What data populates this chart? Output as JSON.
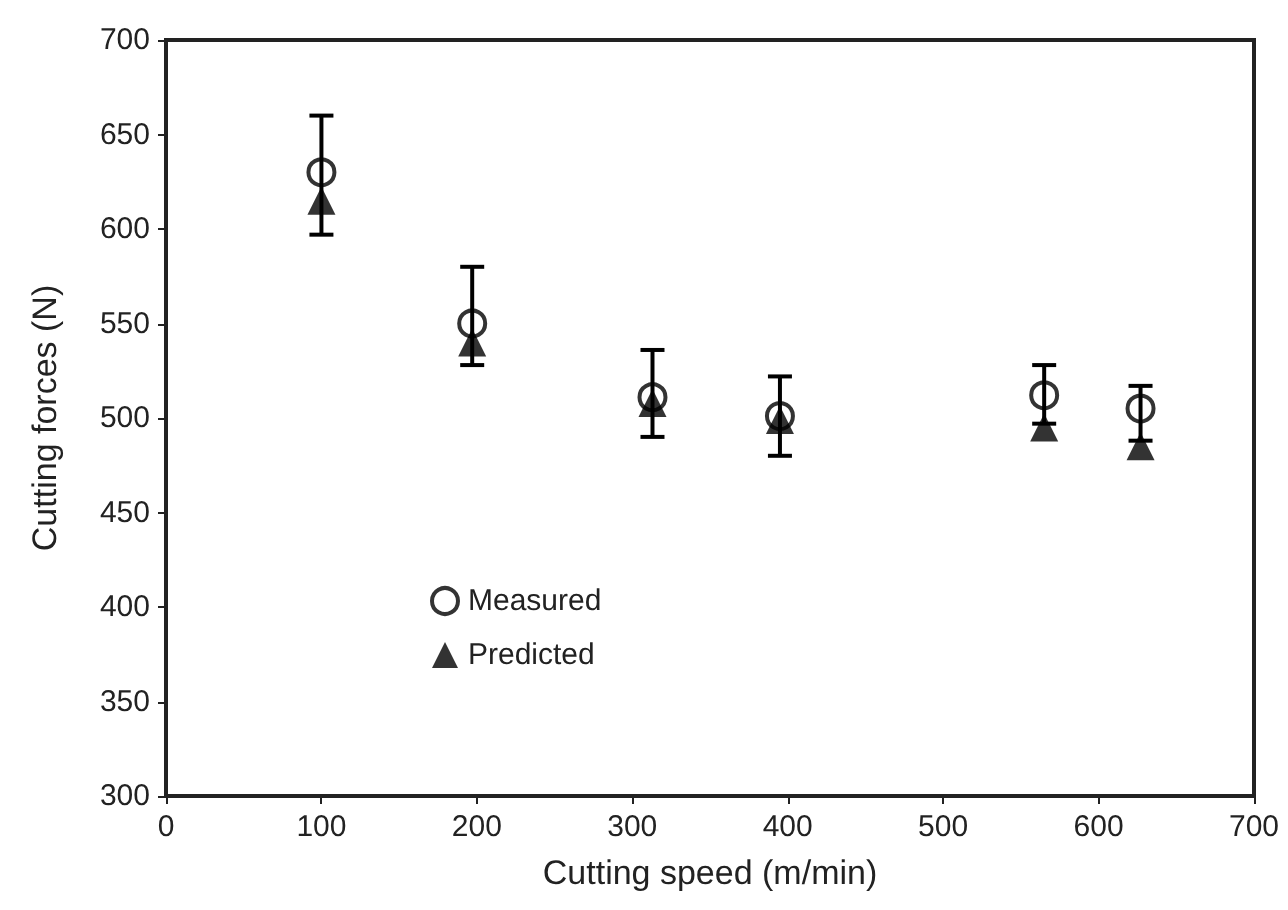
{
  "chart_data": {
    "type": "scatter",
    "xlabel": "Cutting speed (m/min)",
    "ylabel": "Cutting forces (N)",
    "x": [
      100,
      197,
      313,
      395,
      565,
      627
    ],
    "series": [
      {
        "name": "Measured",
        "color": "#000000",
        "marker": "circle",
        "values": [
          630,
          550,
          511,
          501,
          512,
          505
        ],
        "errors": [
          [
            597,
            660
          ],
          [
            528,
            580
          ],
          [
            490,
            536
          ],
          [
            480,
            522
          ],
          [
            497,
            528
          ],
          [
            488,
            517
          ]
        ]
      },
      {
        "name": "Predicted",
        "color": "#000000",
        "marker": "triangle",
        "values": [
          615,
          540,
          508,
          499,
          495,
          485
        ]
      }
    ],
    "xlim": [
      0,
      700
    ],
    "xticks": [
      0,
      100,
      200,
      300,
      400,
      500,
      600,
      700
    ],
    "ylim": [
      300,
      700
    ],
    "yticks": [
      300,
      350,
      400,
      450,
      500,
      550,
      600,
      650,
      700
    ],
    "grid": false,
    "legend": "bottom left"
  }
}
